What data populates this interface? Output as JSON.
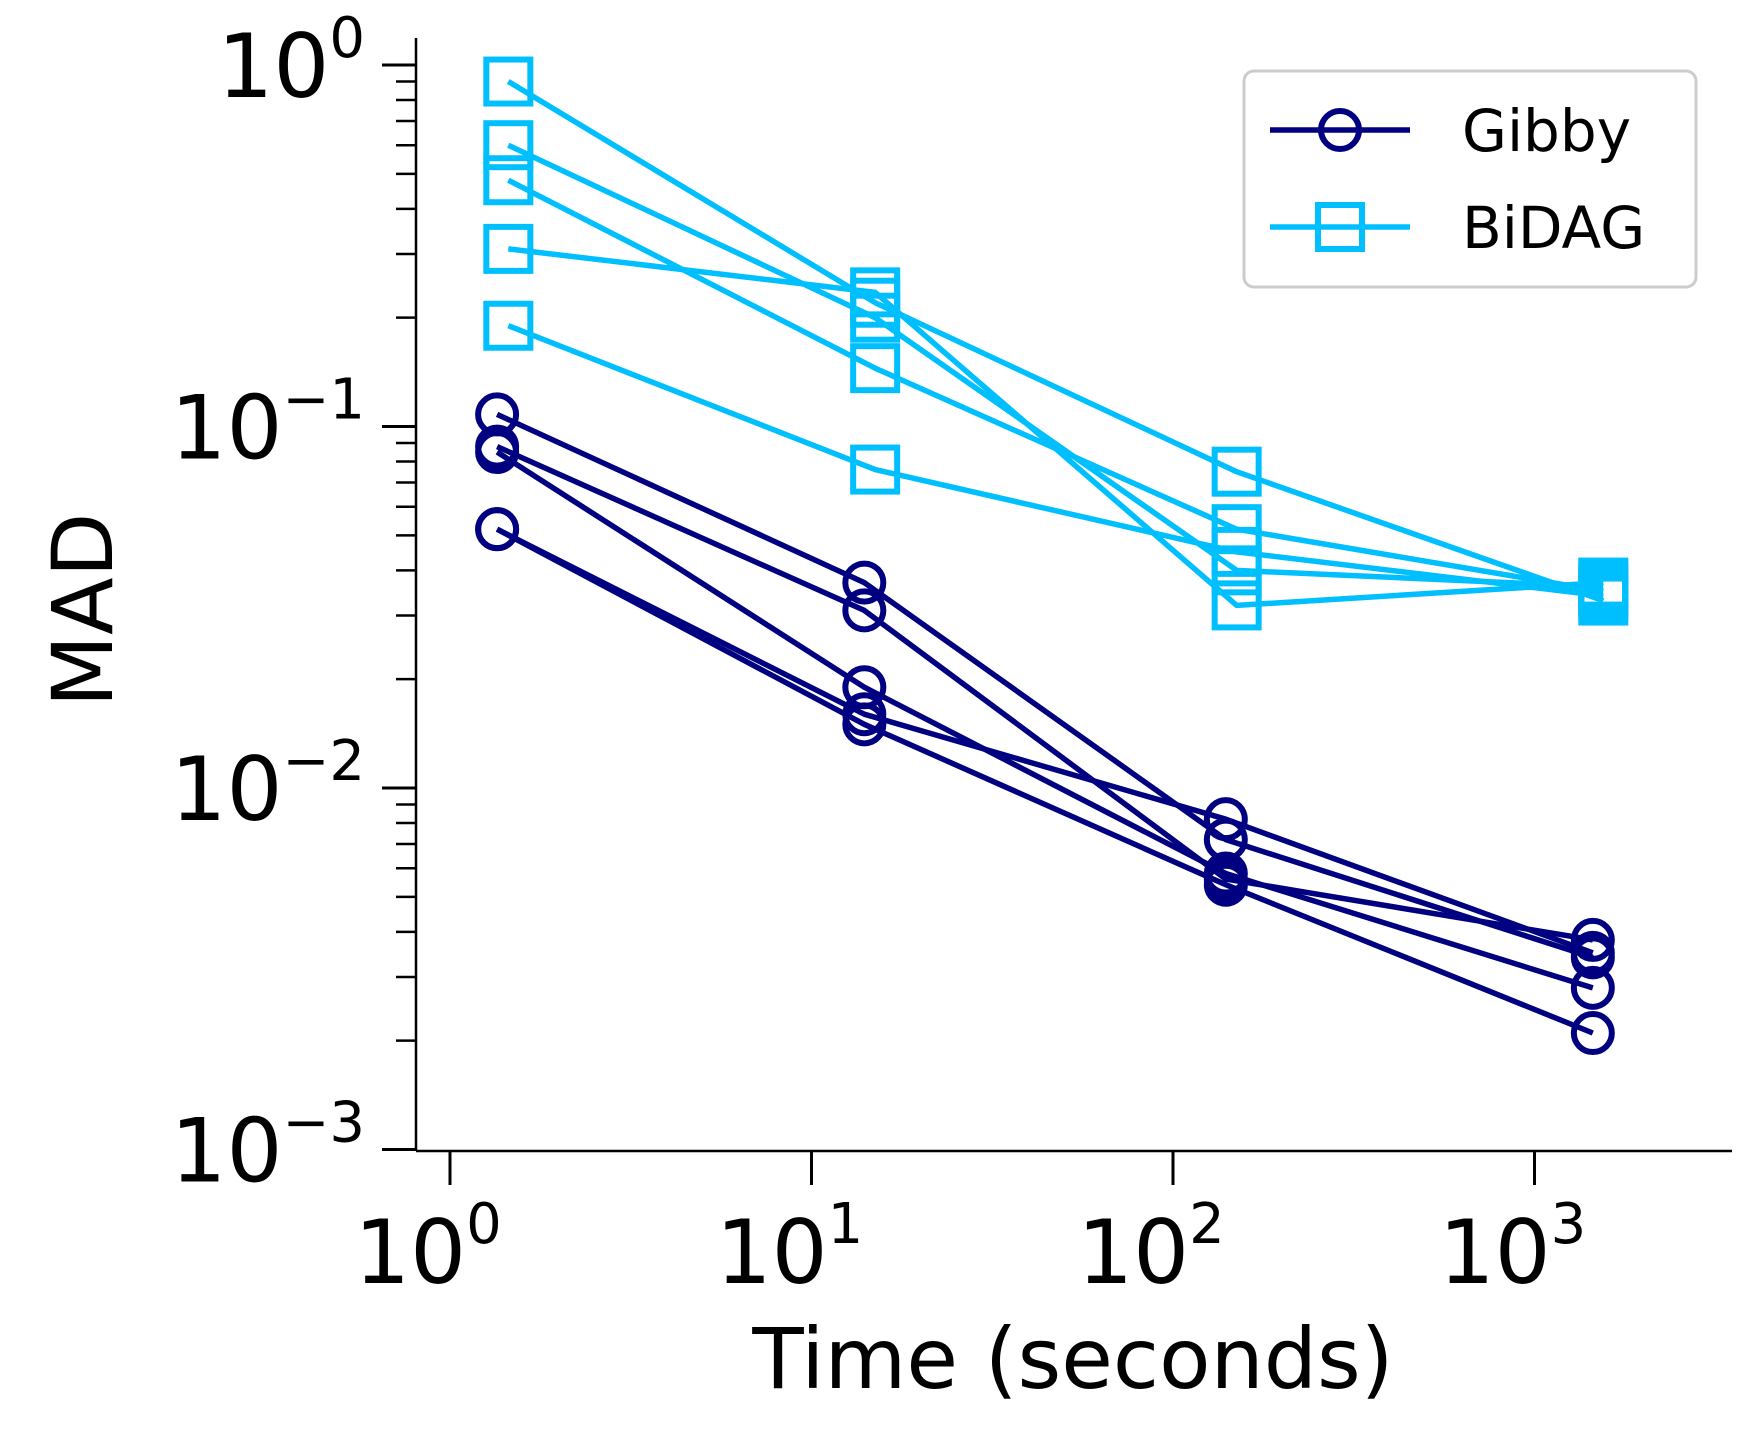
{
  "chart_data": {
    "type": "line",
    "xscale": "log",
    "yscale": "log",
    "xlabel": "Time (seconds)",
    "ylabel": "MAD",
    "xlim": [
      0.8,
      4000
    ],
    "ylim": [
      0.001,
      1.2
    ],
    "xticks": [
      {
        "value": 1,
        "base": "10",
        "exp": "0"
      },
      {
        "value": 10,
        "base": "10",
        "exp": "1"
      },
      {
        "value": 100,
        "base": "10",
        "exp": "2"
      },
      {
        "value": 1000,
        "base": "10",
        "exp": "3"
      }
    ],
    "yticks": [
      {
        "value": 0.001,
        "base": "10",
        "exp": "−3"
      },
      {
        "value": 0.01,
        "base": "10",
        "exp": "−2"
      },
      {
        "value": 0.1,
        "base": "10",
        "exp": "−1"
      },
      {
        "value": 1,
        "base": "10",
        "exp": "0"
      }
    ],
    "legend": {
      "position": "top-right",
      "entries": [
        "Gibby",
        "BiDAG"
      ]
    },
    "grid": false,
    "series": [
      {
        "name": "Gibby",
        "group": "Gibby",
        "color": "#000080",
        "marker": "circle",
        "x": [
          1.35,
          14,
          140,
          1450
        ],
        "y": [
          0.108,
          0.037,
          0.0072,
          0.0034
        ]
      },
      {
        "name": "Gibby",
        "group": "Gibby",
        "color": "#000080",
        "marker": "circle",
        "x": [
          1.35,
          14,
          140,
          1450
        ],
        "y": [
          0.088,
          0.031,
          0.0056,
          0.0038
        ]
      },
      {
        "name": "Gibby",
        "group": "Gibby",
        "color": "#000080",
        "marker": "circle",
        "x": [
          1.35,
          14,
          140,
          1450
        ],
        "y": [
          0.085,
          0.019,
          0.0058,
          0.0028
        ]
      },
      {
        "name": "Gibby",
        "group": "Gibby",
        "color": "#000080",
        "marker": "circle",
        "x": [
          1.35,
          14,
          140,
          1450
        ],
        "y": [
          0.052,
          0.016,
          0.0082,
          0.0035
        ]
      },
      {
        "name": "Gibby",
        "group": "Gibby",
        "color": "#000080",
        "marker": "circle",
        "x": [
          1.35,
          14,
          140,
          1450
        ],
        "y": [
          0.052,
          0.015,
          0.0054,
          0.0021
        ]
      },
      {
        "name": "BiDAG",
        "group": "BiDAG",
        "color": "#00BFFF",
        "marker": "square",
        "x": [
          1.45,
          15,
          150,
          1550
        ],
        "y": [
          0.9,
          0.22,
          0.075,
          0.033
        ]
      },
      {
        "name": "BiDAG",
        "group": "BiDAG",
        "color": "#00BFFF",
        "marker": "square",
        "x": [
          1.45,
          15,
          150,
          1550
        ],
        "y": [
          0.6,
          0.2,
          0.04,
          0.036
        ]
      },
      {
        "name": "BiDAG",
        "group": "BiDAG",
        "color": "#00BFFF",
        "marker": "square",
        "x": [
          1.45,
          15,
          150,
          1550
        ],
        "y": [
          0.48,
          0.145,
          0.052,
          0.035
        ]
      },
      {
        "name": "BiDAG",
        "group": "BiDAG",
        "color": "#00BFFF",
        "marker": "square",
        "x": [
          1.45,
          15,
          150,
          1550
        ],
        "y": [
          0.31,
          0.235,
          0.032,
          0.037
        ]
      },
      {
        "name": "BiDAG",
        "group": "BiDAG",
        "color": "#00BFFF",
        "marker": "square",
        "x": [
          1.45,
          15,
          150,
          1550
        ],
        "y": [
          0.19,
          0.076,
          0.045,
          0.034
        ]
      }
    ]
  }
}
